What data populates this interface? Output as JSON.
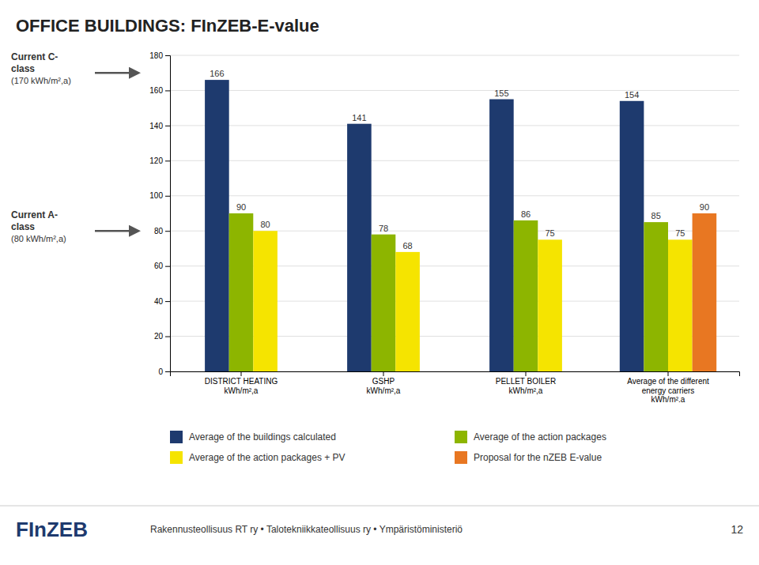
{
  "chart_data": {
    "type": "bar",
    "title": "OFFICE BUILDINGS: FInZEB-E-value",
    "categories": [
      "DISTRICT HEATING\nkWh/m²,a",
      "GSHP\nkWh/m²,a",
      "PELLET BOILER\nkWh/m²,a",
      "Average of the different\nenergy  carriers\nkWh/m².a"
    ],
    "series": [
      {
        "name": "Average of the buildings calculated",
        "color": "#1e3a6e",
        "values": [
          166,
          141,
          155,
          154
        ]
      },
      {
        "name": "Average of the action packages",
        "color": "#8db500",
        "values": [
          90,
          78,
          86,
          85
        ]
      },
      {
        "name": "Average of the action packages + PV",
        "color": "#f5e400",
        "values": [
          80,
          68,
          75,
          75
        ]
      },
      {
        "name": "Proposal for the nZEB E-value",
        "color": "#e87722",
        "values": [
          null,
          null,
          null,
          90
        ]
      }
    ],
    "ylim": [
      0,
      180
    ],
    "yticks": [
      0,
      20,
      40,
      60,
      80,
      100,
      120,
      140,
      160,
      180
    ],
    "grid": true,
    "data_labels": true,
    "legend": "bottom",
    "annotations": [
      {
        "text": [
          "Current C-",
          "class",
          "(170 kWh/m²,a)"
        ],
        "y": 170
      },
      {
        "text": [
          "Current A-",
          "class",
          "(80 kWh/m²,a)"
        ],
        "y": 80
      },
      {
        "text": "FInZEB"
      },
      {
        "text": "Rakennusteollisuus RT ry  •  Talotekniikkateollisuus ry  •  Ympäristöministeriö"
      },
      {
        "text": "12"
      }
    ]
  }
}
